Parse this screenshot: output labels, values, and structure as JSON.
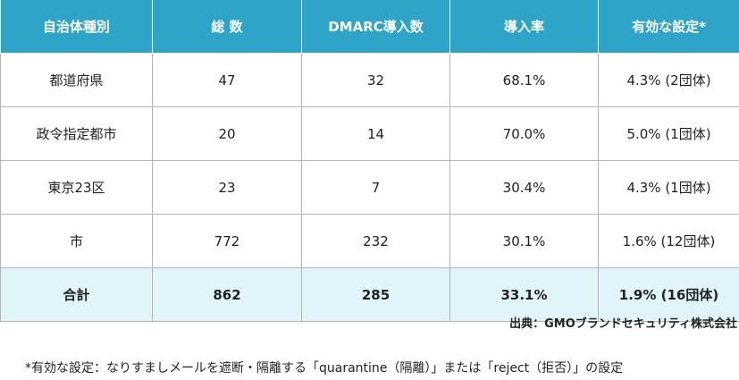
{
  "table": {
    "headers": [
      "自治体種別",
      "総 数",
      "DMARC導入数",
      "導入率",
      "有効な設定*"
    ],
    "rows": [
      [
        "都道府県",
        "47",
        "32",
        "68.1%",
        "4.3% (2団体)"
      ],
      [
        "政令指定都市",
        "20",
        "14",
        "70.0%",
        "5.0% (1団体)"
      ],
      [
        "東京23区",
        "23",
        "7",
        "30.4%",
        "4.3% (1団体)"
      ],
      [
        "市",
        "772",
        "232",
        "30.1%",
        "1.6% (12団体)"
      ]
    ],
    "total": [
      "合計",
      "862",
      "285",
      "33.1%",
      "1.9% (16団体)"
    ]
  },
  "source": "出典：GMOブランドセキュリティ株式会社",
  "footnote": "*有効な設定：なりすましメールを遮断・隔離する「quarantine（隔離）」または「reject（拒否）」の設定",
  "colors": {
    "header": "#2ea4c8",
    "total_row": "#e1f4fa"
  }
}
